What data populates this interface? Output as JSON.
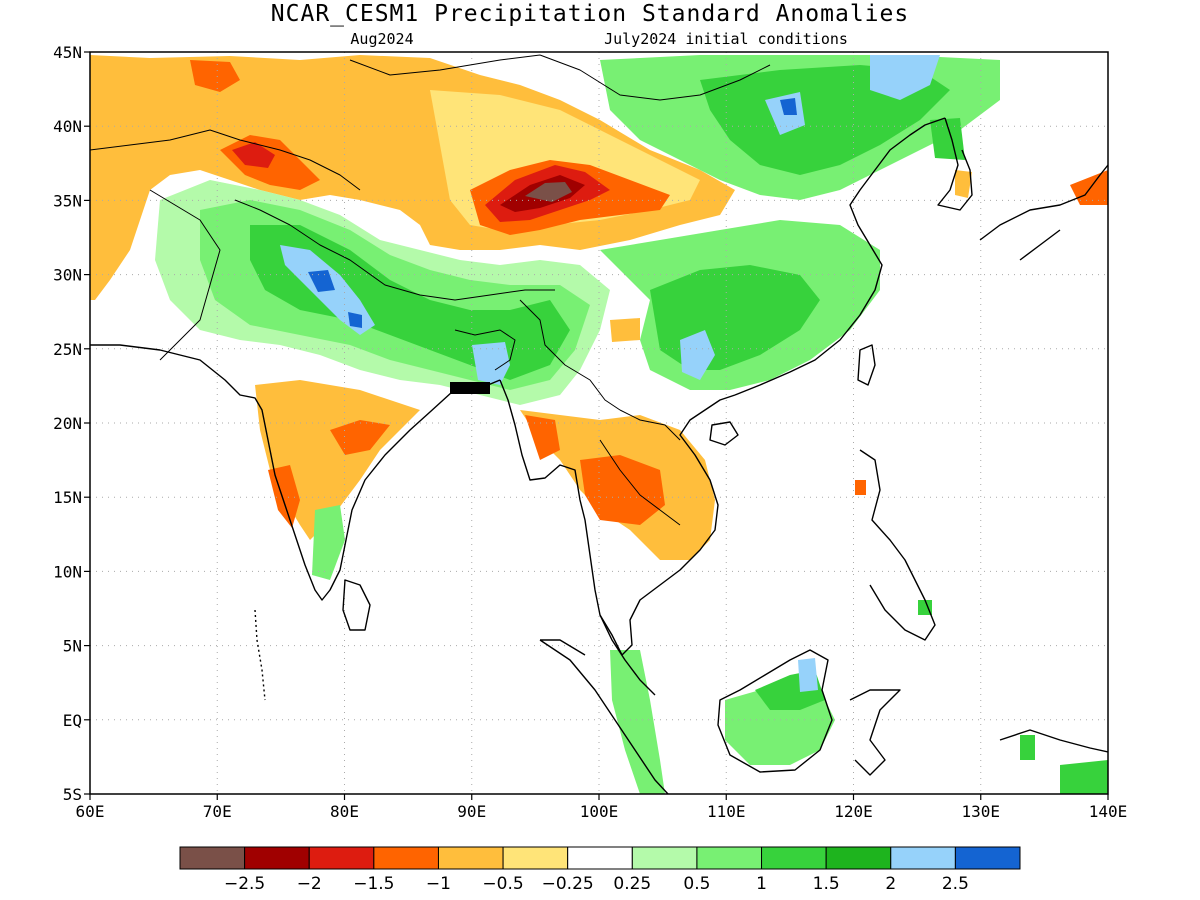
{
  "title": "NCAR_CESM1 Precipitation Standard Anomalies",
  "subtitle_left": "Aug2024",
  "subtitle_right": "July2024 initial conditions",
  "map": {
    "lon_range": [
      60,
      140
    ],
    "lat_range": [
      -5,
      45
    ],
    "x_ticks": [
      "60E",
      "70E",
      "80E",
      "90E",
      "100E",
      "110E",
      "120E",
      "130E",
      "140E"
    ],
    "y_ticks": [
      "5S",
      "EQ",
      "5N",
      "10N",
      "15N",
      "20N",
      "25N",
      "30N",
      "35N",
      "40N",
      "45N"
    ],
    "gridlines": true
  },
  "colorbar": {
    "colors": [
      "#7a5048",
      "#a00000",
      "#dd1c10",
      "#ff6400",
      "#ffbe3c",
      "#ffe478",
      "#ffffff",
      "#b4faaa",
      "#78f073",
      "#37d23c",
      "#1eb41e",
      "#96d2fa",
      "#1464d2"
    ],
    "labels": [
      "-2.5",
      "-2",
      "-1.5",
      "-1",
      "-0.5",
      "-0.25",
      "0.25",
      "0.5",
      "1",
      "1.5",
      "2",
      "2.5"
    ]
  },
  "colors": {
    "ocean": "#ffffff",
    "land_neutral": "#ffffff",
    "coastline": "#000000",
    "grid": "#aaaaaa"
  }
}
